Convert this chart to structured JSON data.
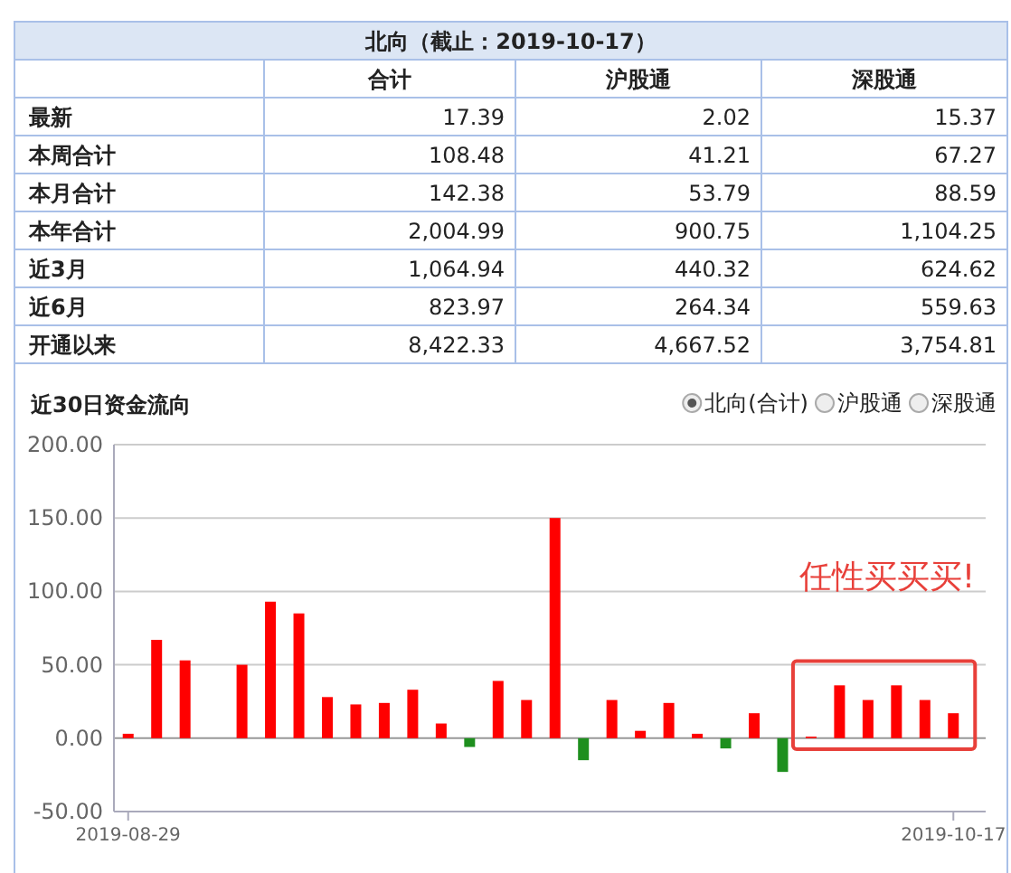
{
  "chart_data": [
    {
      "type": "other",
      "title": "北向（截止：2019-10-17）",
      "categories": [
        "合计",
        "沪股通",
        "深股通"
      ],
      "y_categories": [
        "最新",
        "本周合计",
        "本月合计",
        "本年合计",
        "近3月",
        "近6月",
        "开通以来"
      ],
      "cell_labels": [
        [
          "17.39",
          "2.02",
          "15.37"
        ],
        [
          "108.48",
          "41.21",
          "67.27"
        ],
        [
          "142.38",
          "53.79",
          "88.59"
        ],
        [
          "2,004.99",
          "900.75",
          "1,104.25"
        ],
        [
          "1,064.94",
          "440.32",
          "624.62"
        ],
        [
          "823.97",
          "264.34",
          "559.63"
        ],
        [
          "8,422.33",
          "4,667.52",
          "3,754.81"
        ]
      ]
    },
    {
      "type": "bar",
      "title": "近30日资金流向",
      "categories": [
        "2019-08-29",
        null,
        null,
        null,
        null,
        null,
        null,
        null,
        null,
        null,
        null,
        null,
        null,
        null,
        null,
        null,
        null,
        null,
        null,
        null,
        null,
        null,
        null,
        null,
        null,
        null,
        null,
        null,
        null,
        "2019-10-17"
      ],
      "values": [
        3,
        67,
        53,
        null,
        50,
        93,
        85,
        28,
        23,
        24,
        33,
        10,
        -6,
        39,
        26,
        150,
        -15,
        26,
        5,
        24,
        3,
        -7,
        17,
        -23,
        1,
        36,
        26,
        36,
        26,
        17
      ],
      "colors": [
        "#ff0000",
        "#ff0000",
        "#ff0000",
        null,
        "#ff0000",
        "#ff0000",
        "#ff0000",
        "#ff0000",
        "#ff0000",
        "#ff0000",
        "#ff0000",
        "#ff0000",
        "#1e8f1e",
        "#ff0000",
        "#ff0000",
        "#ff0000",
        "#1e8f1e",
        "#ff0000",
        "#ff0000",
        "#ff0000",
        "#ff0000",
        "#1e8f1e",
        "#ff0000",
        "#1e8f1e",
        "#ff0000",
        "#ff0000",
        "#ff0000",
        "#ff0000",
        "#ff0000",
        "#ff0000"
      ],
      "ylim": [
        -50,
        200
      ],
      "yticks": [
        {
          "value": -50,
          "label": "-50.00"
        },
        {
          "value": 0,
          "label": "0.00"
        },
        {
          "value": 50,
          "label": "50.00"
        },
        {
          "value": 100,
          "label": "100.00"
        },
        {
          "value": 150,
          "label": "150.00"
        },
        {
          "value": 200,
          "label": "200.00"
        }
      ],
      "grid": "y",
      "annotations": [
        "北向(合计)",
        "沪股通",
        "深股通",
        "任性买买买!"
      ]
    }
  ]
}
